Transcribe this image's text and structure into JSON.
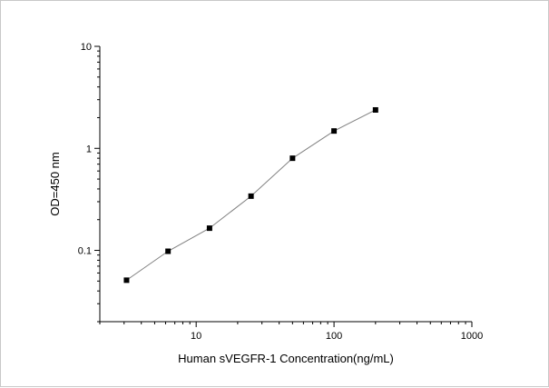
{
  "chart_data": {
    "type": "scatter",
    "title": "",
    "xlabel": "Human sVEGFR-1 Concentration(ng/mL)",
    "ylabel": "OD=450 nm",
    "xscale": "log",
    "yscale": "log",
    "xlim": [
      2,
      1000
    ],
    "ylim": [
      0.02,
      10
    ],
    "x_ticks": [
      10,
      100,
      1000
    ],
    "x_tick_labels": [
      "10",
      "100",
      "1000"
    ],
    "y_ticks": [
      0.1,
      1,
      10
    ],
    "y_tick_labels": [
      "0.1",
      "1",
      "10"
    ],
    "grid": false,
    "legend": "none",
    "line": "connected",
    "colors": {
      "markers": "#000000",
      "line": "#808080",
      "axes": "#000000"
    },
    "series": [
      {
        "x": [
          3.125,
          6.25,
          12.5,
          25,
          50,
          100,
          200
        ],
        "y": [
          0.051,
          0.098,
          0.165,
          0.34,
          0.8,
          1.48,
          2.38
        ]
      }
    ]
  }
}
